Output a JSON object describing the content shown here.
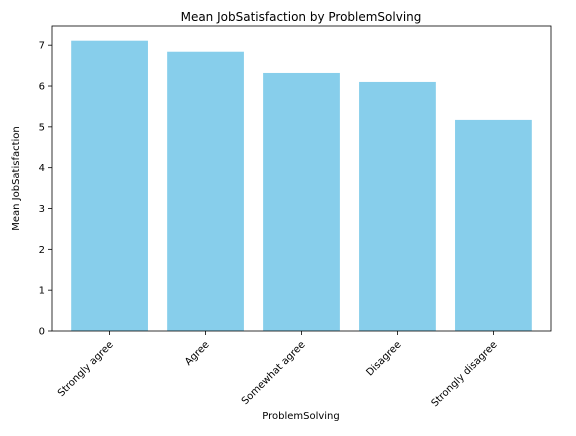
{
  "chart_data": {
    "type": "bar",
    "title": "Mean JobSatisfaction by ProblemSolving",
    "xlabel": "ProblemSolving",
    "ylabel": "Mean JobSatisfaction",
    "categories": [
      "Strongly agree",
      "Agree",
      "Somewhat agree",
      "Disagree",
      "Strongly disagree"
    ],
    "values": [
      7.11,
      6.84,
      6.32,
      6.1,
      5.17
    ],
    "ylim": [
      0,
      7.47
    ],
    "yticks": [
      0,
      1,
      2,
      3,
      4,
      5,
      6,
      7
    ],
    "grid": false,
    "bar_color": "#87CEEB"
  }
}
